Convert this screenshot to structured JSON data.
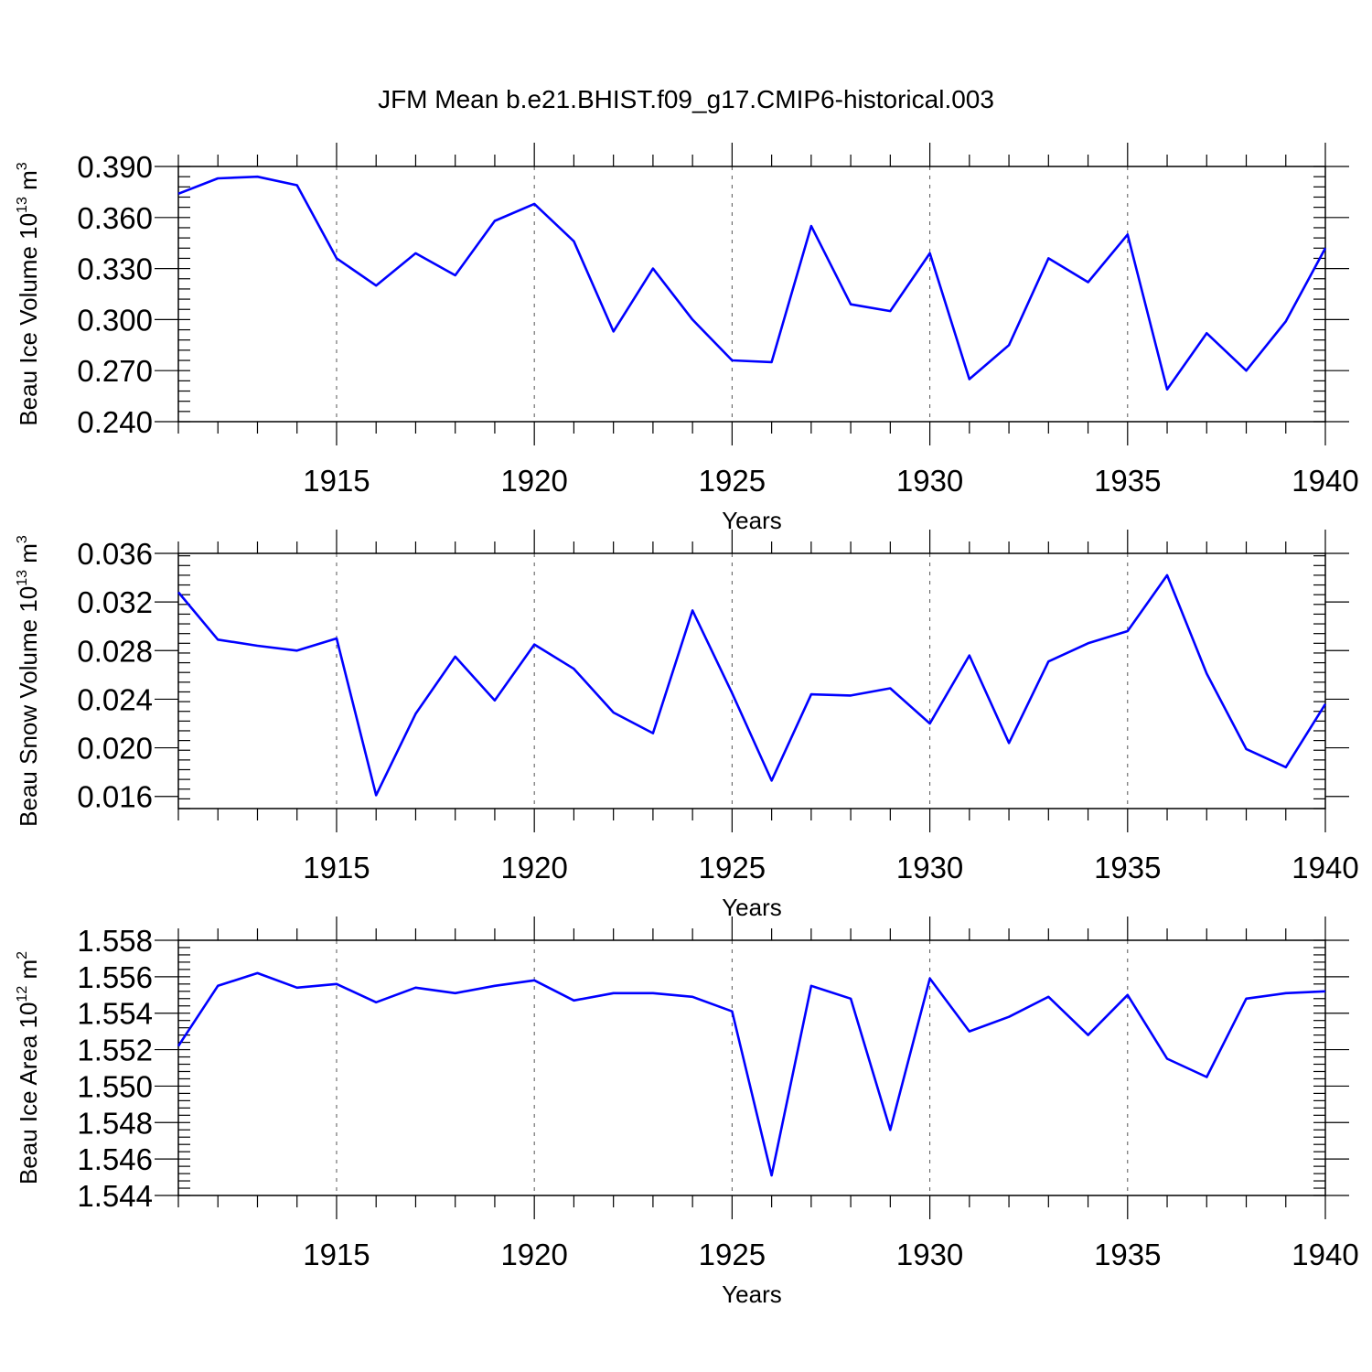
{
  "figure": {
    "title": "JFM Mean b.e21.BHIST.f09_g17.CMIP6-historical.003",
    "line_color": "#0000ff"
  },
  "chart_data": [
    {
      "type": "line",
      "ylabel_text": "Beau Ice Volume 10",
      "ylabel_exp": "13",
      "ylabel_unit": " m",
      "ylabel_unit_exp": "3",
      "xlabel": "Years",
      "xlim": [
        1911,
        1940
      ],
      "ylim": [
        0.24,
        0.39
      ],
      "yticks": [
        0.24,
        0.27,
        0.3,
        0.33,
        0.36,
        0.39
      ],
      "ytick_labels": [
        "0.240",
        "0.270",
        "0.300",
        "0.330",
        "0.360",
        "0.390"
      ],
      "y_minor_step": 0.006,
      "xticks": [
        1915,
        1920,
        1925,
        1930,
        1935,
        1940
      ],
      "xtick_labels": [
        "1915",
        "1920",
        "1925",
        "1930",
        "1935",
        "1940"
      ],
      "x": [
        1911,
        1912,
        1913,
        1914,
        1915,
        1916,
        1917,
        1918,
        1919,
        1920,
        1921,
        1922,
        1923,
        1924,
        1925,
        1926,
        1927,
        1928,
        1929,
        1930,
        1931,
        1932,
        1933,
        1934,
        1935,
        1936,
        1937,
        1938,
        1939,
        1940
      ],
      "values": [
        0.374,
        0.383,
        0.384,
        0.379,
        0.336,
        0.32,
        0.339,
        0.326,
        0.358,
        0.368,
        0.346,
        0.293,
        0.33,
        0.3,
        0.276,
        0.275,
        0.355,
        0.309,
        0.305,
        0.339,
        0.265,
        0.285,
        0.336,
        0.322,
        0.35,
        0.259,
        0.292,
        0.27,
        0.299,
        0.342
      ]
    },
    {
      "type": "line",
      "ylabel_text": "Beau Snow Volume 10",
      "ylabel_exp": "13",
      "ylabel_unit": " m",
      "ylabel_unit_exp": "3",
      "xlabel": "Years",
      "xlim": [
        1911,
        1940
      ],
      "ylim": [
        0.015,
        0.036
      ],
      "yticks": [
        0.016,
        0.02,
        0.024,
        0.028,
        0.032,
        0.036
      ],
      "ytick_labels": [
        "0.016",
        "0.020",
        "0.024",
        "0.028",
        "0.032",
        "0.036"
      ],
      "y_minor_step": 0.0008,
      "xticks": [
        1915,
        1920,
        1925,
        1930,
        1935,
        1940
      ],
      "xtick_labels": [
        "1915",
        "1920",
        "1925",
        "1930",
        "1935",
        "1940"
      ],
      "x": [
        1911,
        1912,
        1913,
        1914,
        1915,
        1916,
        1917,
        1918,
        1919,
        1920,
        1921,
        1922,
        1923,
        1924,
        1925,
        1926,
        1927,
        1928,
        1929,
        1930,
        1931,
        1932,
        1933,
        1934,
        1935,
        1936,
        1937,
        1938,
        1939,
        1940
      ],
      "values": [
        0.0328,
        0.0289,
        0.0284,
        0.028,
        0.029,
        0.0161,
        0.0228,
        0.0275,
        0.0239,
        0.0285,
        0.0265,
        0.0229,
        0.0212,
        0.0313,
        0.0245,
        0.0173,
        0.0244,
        0.0243,
        0.0249,
        0.022,
        0.0276,
        0.0204,
        0.0271,
        0.0286,
        0.0296,
        0.0342,
        0.0261,
        0.0199,
        0.0184,
        0.0236
      ]
    },
    {
      "type": "line",
      "ylabel_text": "Beau Ice Area 10",
      "ylabel_exp": "12",
      "ylabel_unit": " m",
      "ylabel_unit_exp": "2",
      "xlabel": "Years",
      "xlim": [
        1911,
        1940
      ],
      "ylim": [
        1.544,
        1.558
      ],
      "yticks": [
        1.544,
        1.546,
        1.548,
        1.55,
        1.552,
        1.554,
        1.556,
        1.558
      ],
      "ytick_labels": [
        "1.544",
        "1.546",
        "1.548",
        "1.550",
        "1.552",
        "1.554",
        "1.556",
        "1.558"
      ],
      "y_minor_step": 0.0004,
      "xticks": [
        1915,
        1920,
        1925,
        1930,
        1935,
        1940
      ],
      "xtick_labels": [
        "1915",
        "1920",
        "1925",
        "1930",
        "1935",
        "1940"
      ],
      "x": [
        1911,
        1912,
        1913,
        1914,
        1915,
        1916,
        1917,
        1918,
        1919,
        1920,
        1921,
        1922,
        1923,
        1924,
        1925,
        1926,
        1927,
        1928,
        1929,
        1930,
        1931,
        1932,
        1933,
        1934,
        1935,
        1936,
        1937,
        1938,
        1939,
        1940
      ],
      "values": [
        1.5522,
        1.5555,
        1.5562,
        1.5554,
        1.5556,
        1.5546,
        1.5554,
        1.5551,
        1.5555,
        1.5558,
        1.5547,
        1.5551,
        1.5551,
        1.5549,
        1.5541,
        1.5451,
        1.5555,
        1.5548,
        1.5476,
        1.5559,
        1.553,
        1.5538,
        1.5549,
        1.5528,
        1.555,
        1.5515,
        1.5505,
        1.5548,
        1.5551,
        1.5552
      ]
    }
  ]
}
